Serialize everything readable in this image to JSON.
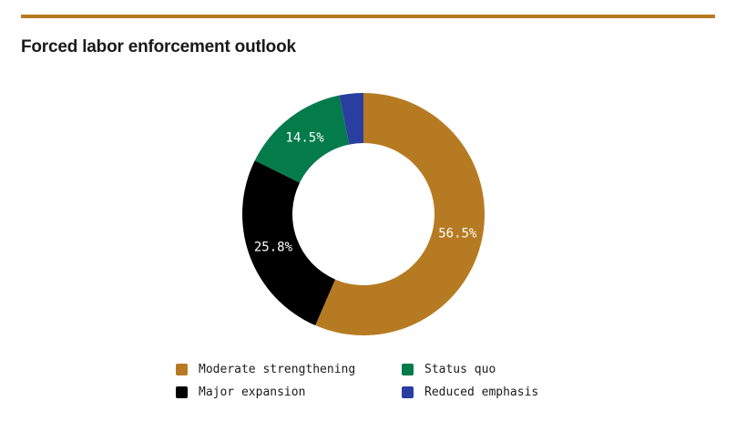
{
  "colors": {
    "rule": "#b67b22"
  },
  "chart_data": {
    "type": "pie",
    "variant": "donut",
    "title": "Forced labor enforcement outlook",
    "slices": [
      {
        "name": "Moderate strengthening",
        "value": 56.5,
        "label": "56.5%",
        "color": "#b67b22",
        "show_label": true
      },
      {
        "name": "Major expansion",
        "value": 25.8,
        "label": "25.8%",
        "color": "#000000",
        "show_label": true
      },
      {
        "name": "Status quo",
        "value": 14.5,
        "label": "14.5%",
        "color": "#047b4b",
        "show_label": true
      },
      {
        "name": "Reduced emphasis",
        "value": 3.2,
        "label": "3.2%",
        "color": "#2a3ea0",
        "show_label": false
      }
    ],
    "start_angle_deg": 0,
    "direction": "clockwise",
    "legend_position": "bottom",
    "legend_order": [
      "Moderate strengthening",
      "Status quo",
      "Major expansion",
      "Reduced emphasis"
    ]
  }
}
